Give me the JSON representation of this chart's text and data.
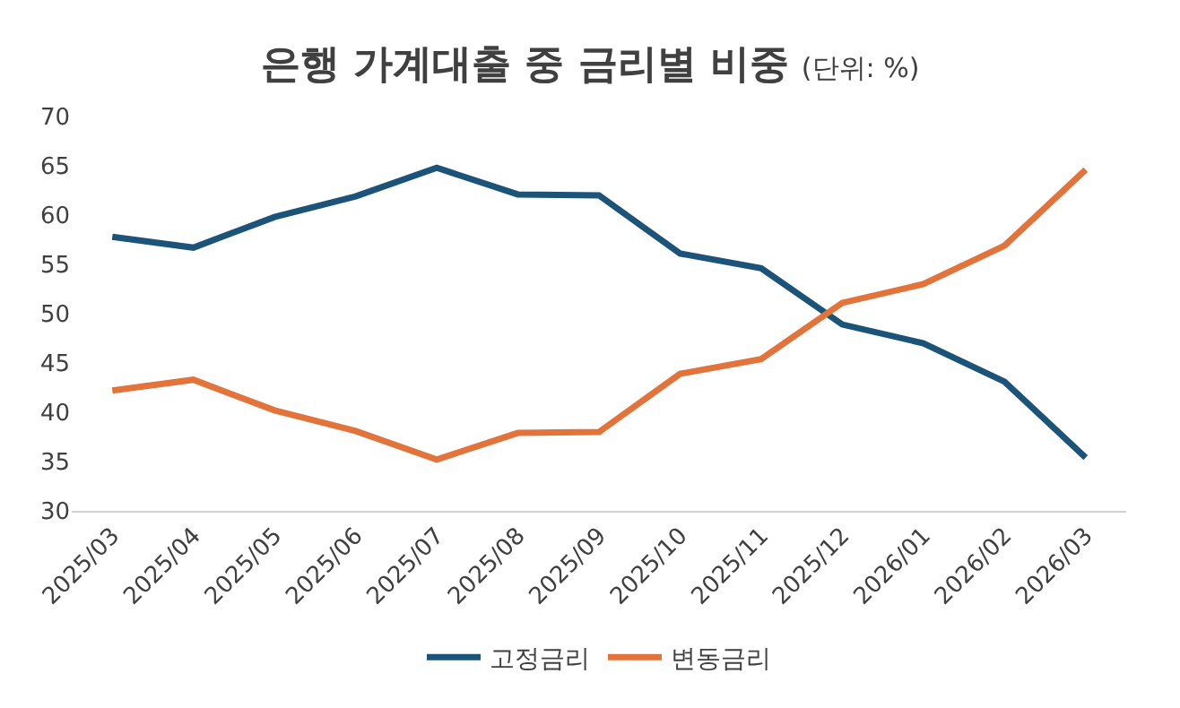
{
  "chart_data": {
    "type": "line",
    "title": "은행 가계대출 중 금리별 비중",
    "subtitle": "(단위: %)",
    "categories": [
      "2025/03",
      "2025/04",
      "2025/05",
      "2025/06",
      "2025/07",
      "2025/08",
      "2025/09",
      "2025/10",
      "2025/11",
      "2025/12",
      "2026/01",
      "2026/02",
      "2026/03"
    ],
    "series": [
      {
        "name": "고정금리",
        "color": "#1b5478",
        "values": [
          57.8,
          56.7,
          59.8,
          61.9,
          64.8,
          62.1,
          62.0,
          56.1,
          54.6,
          48.9,
          47.0,
          43.1,
          35.4
        ]
      },
      {
        "name": "변동금리",
        "color": "#e2733a",
        "values": [
          42.2,
          43.3,
          40.2,
          38.1,
          35.2,
          37.9,
          38.0,
          43.9,
          45.4,
          51.1,
          53.0,
          56.9,
          64.6
        ]
      }
    ],
    "ylim": [
      30,
      70
    ],
    "yticks": [
      30,
      35,
      40,
      45,
      50,
      55,
      60,
      65,
      70
    ],
    "legend": "bottom",
    "marker": "none",
    "line_style": "solid"
  }
}
